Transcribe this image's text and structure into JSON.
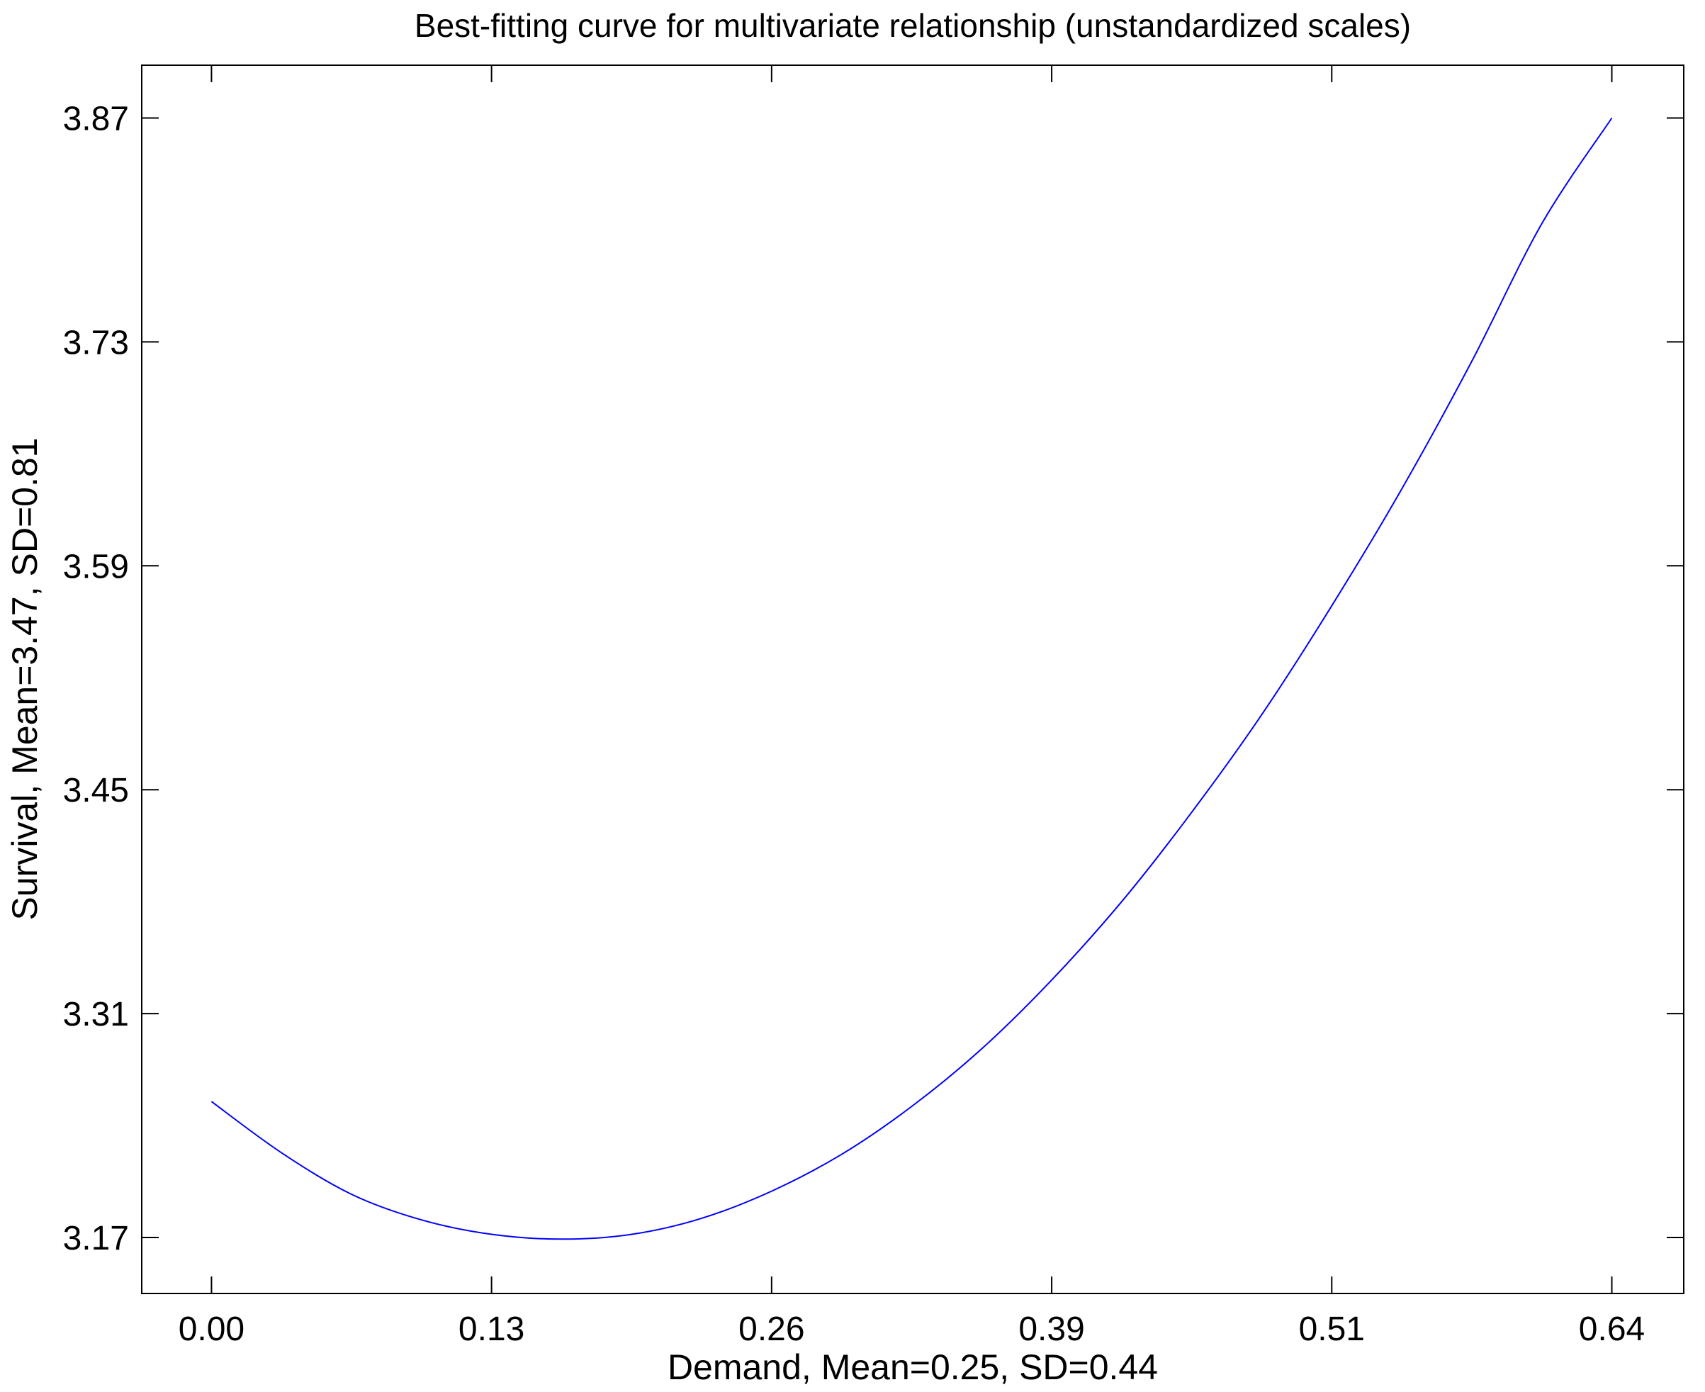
{
  "chart_data": {
    "type": "line",
    "title": "Best-fitting curve for multivariate relationship (unstandardized scales)",
    "xlabel": "Demand, Mean=0.25, SD=0.44",
    "ylabel": "Survival, Mean=3.47, SD=0.81",
    "x_ticks": [
      "0.00",
      "0.13",
      "0.26",
      "0.39",
      "0.51",
      "0.64"
    ],
    "x_tick_values": [
      0.0,
      0.1285,
      0.257,
      0.3855,
      0.514,
      0.6425
    ],
    "y_ticks": [
      "3.17",
      "3.31",
      "3.45",
      "3.59",
      "3.73",
      "3.87"
    ],
    "y_tick_values": [
      3.17,
      3.31,
      3.45,
      3.59,
      3.73,
      3.87
    ],
    "xlim": [
      -0.032,
      0.6755
    ],
    "ylim": [
      3.135,
      3.903
    ],
    "grid": false,
    "series_color": "#0000ff",
    "series": [
      {
        "x": [
          0.0,
          0.0321,
          0.0643,
          0.0964,
          0.1285,
          0.1606,
          0.1928,
          0.2249,
          0.257,
          0.2891,
          0.3213,
          0.3534,
          0.3855,
          0.4176,
          0.4498,
          0.4819,
          0.514,
          0.5461,
          0.5783,
          0.6104,
          0.6425
        ],
        "y": [
          3.255,
          3.223,
          3.197,
          3.181,
          3.172,
          3.169,
          3.172,
          3.182,
          3.199,
          3.222,
          3.252,
          3.288,
          3.331,
          3.38,
          3.436,
          3.497,
          3.565,
          3.638,
          3.718,
          3.804,
          3.87
        ]
      }
    ]
  }
}
